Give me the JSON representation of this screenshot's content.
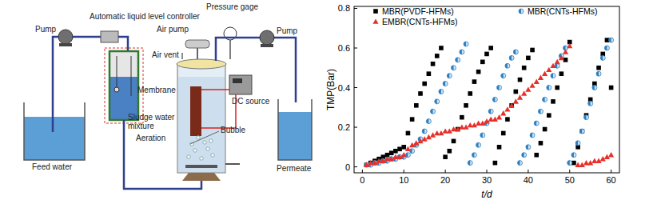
{
  "diagram": {
    "labels": [
      {
        "lines": [
          "Pump"
        ]
      },
      {
        "lines": [
          "Automatic liquid level controller"
        ]
      },
      {
        "lines": [
          "Air pump"
        ]
      },
      {
        "lines": [
          "Pressure gage"
        ]
      },
      {
        "lines": [
          "Pump"
        ]
      },
      {
        "lines": [
          "Air vent"
        ]
      },
      {
        "lines": [
          "Membrane"
        ]
      },
      {
        "lines": [
          "DC source"
        ]
      },
      {
        "lines": [
          "Sludge water",
          "mixture"
        ]
      },
      {
        "lines": [
          "Aeration"
        ]
      },
      {
        "lines": [
          "Bubble"
        ]
      },
      {
        "lines": [
          "Feed water"
        ]
      },
      {
        "lines": [
          "Permeate"
        ]
      }
    ]
  },
  "chart_data": {
    "type": "scatter",
    "x_label": "t/d",
    "y_label": "TMP(Bar)",
    "xlim": [
      -2,
      62
    ],
    "xticks": [
      0,
      10,
      20,
      30,
      40,
      50,
      60
    ],
    "ylim": [
      -0.03,
      0.81
    ],
    "yticks": [
      0,
      0.2,
      0.4,
      0.6,
      0.8
    ],
    "grid": false,
    "legend": "upper left",
    "series": [
      {
        "name": "MBR(PVDF-HFMs)",
        "color": "#000000",
        "marker": "square",
        "x": [
          1,
          2,
          3,
          4,
          5,
          6,
          7,
          8,
          9,
          10,
          11,
          12,
          13,
          14,
          15,
          16,
          17,
          18,
          19,
          20,
          21,
          22,
          23,
          24,
          25,
          26,
          27,
          28,
          29,
          30,
          31,
          32,
          33,
          34,
          35,
          36,
          37,
          38,
          39,
          40,
          41,
          42,
          43,
          44,
          45,
          46,
          47,
          48,
          49,
          50,
          51,
          52,
          53,
          54,
          55,
          56,
          57,
          58,
          59,
          60
        ],
        "values": [
          0.01,
          0.02,
          0.03,
          0.04,
          0.05,
          0.06,
          0.07,
          0.08,
          0.09,
          0.1,
          0.17,
          0.24,
          0.31,
          0.37,
          0.42,
          0.47,
          0.52,
          0.56,
          0.6,
          0.05,
          0.08,
          0.13,
          0.19,
          0.25,
          0.31,
          0.37,
          0.43,
          0.48,
          0.53,
          0.57,
          0.6,
          0.02,
          0.1,
          0.17,
          0.24,
          0.31,
          0.38,
          0.44,
          0.5,
          0.55,
          0.59,
          0.06,
          0.12,
          0.19,
          0.26,
          0.33,
          0.4,
          0.47,
          0.54,
          0.63,
          0.02,
          0.1,
          0.18,
          0.26,
          0.34,
          0.42,
          0.5,
          0.57,
          0.64,
          0.4
        ]
      },
      {
        "name": "MBR(CNTs-HFMs)",
        "color": "#2c7fc0",
        "marker": "half-circle",
        "x": [
          1,
          2,
          3,
          4,
          5,
          6,
          7,
          8,
          9,
          10,
          11,
          12,
          13,
          14,
          15,
          16,
          17,
          18,
          19,
          20,
          21,
          22,
          23,
          24,
          25,
          26,
          27,
          28,
          29,
          30,
          31,
          32,
          33,
          34,
          35,
          36,
          37,
          38,
          39,
          40,
          41,
          42,
          43,
          44,
          45,
          46,
          47,
          48,
          49,
          50,
          51,
          52,
          53,
          54,
          55,
          56,
          57,
          58,
          59,
          60
        ],
        "values": [
          0.01,
          0.01,
          0.02,
          0.02,
          0.03,
          0.03,
          0.04,
          0.04,
          0.05,
          0.05,
          0.06,
          0.08,
          0.11,
          0.14,
          0.18,
          0.23,
          0.28,
          0.33,
          0.38,
          0.42,
          0.46,
          0.5,
          0.54,
          0.58,
          0.62,
          0.02,
          0.06,
          0.11,
          0.16,
          0.22,
          0.28,
          0.34,
          0.4,
          0.46,
          0.51,
          0.55,
          0.58,
          0.02,
          0.06,
          0.1,
          0.16,
          0.22,
          0.28,
          0.34,
          0.4,
          0.46,
          0.51,
          0.56,
          0.6,
          0.02,
          0.06,
          0.12,
          0.18,
          0.25,
          0.32,
          0.4,
          0.47,
          0.55,
          0.6,
          0.64
        ]
      },
      {
        "name": "EMBR(CNTs-HFMs)",
        "color": "#e8302a",
        "marker": "triangle",
        "x": [
          1,
          2,
          3,
          4,
          5,
          6,
          7,
          8,
          9,
          10,
          11,
          12,
          13,
          14,
          15,
          16,
          17,
          18,
          19,
          20,
          21,
          22,
          23,
          24,
          25,
          26,
          27,
          28,
          29,
          30,
          31,
          32,
          33,
          34,
          35,
          36,
          37,
          38,
          39,
          40,
          41,
          42,
          43,
          44,
          45,
          46,
          47,
          48,
          49,
          50,
          52,
          53,
          54,
          55,
          56,
          57,
          58,
          59,
          60
        ],
        "values": [
          0.01,
          0.02,
          0.02,
          0.03,
          0.03,
          0.04,
          0.04,
          0.05,
          0.05,
          0.06,
          0.09,
          0.11,
          0.12,
          0.13,
          0.14,
          0.15,
          0.16,
          0.17,
          0.17,
          0.18,
          0.18,
          0.19,
          0.19,
          0.2,
          0.2,
          0.21,
          0.21,
          0.22,
          0.22,
          0.23,
          0.24,
          0.24,
          0.25,
          0.27,
          0.29,
          0.31,
          0.33,
          0.35,
          0.37,
          0.39,
          0.41,
          0.43,
          0.45,
          0.47,
          0.49,
          0.51,
          0.53,
          0.55,
          0.58,
          0.61,
          0.01,
          0.01,
          0.02,
          0.02,
          0.03,
          0.03,
          0.04,
          0.05,
          0.06
        ]
      }
    ]
  }
}
